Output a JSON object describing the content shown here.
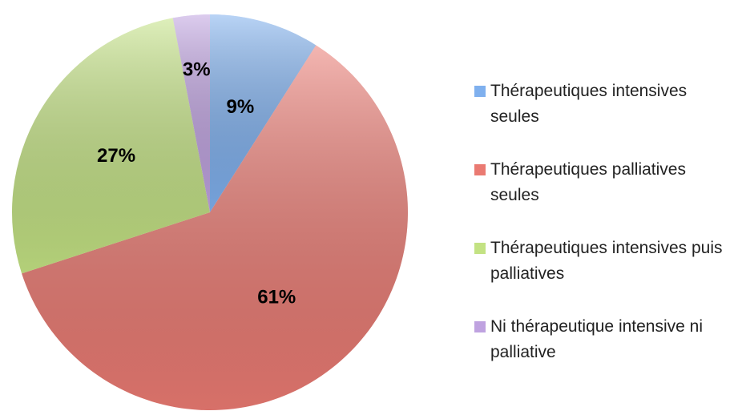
{
  "chart_data": {
    "type": "pie",
    "categories": [
      "Thérapeutiques intensives seules",
      "Thérapeutiques palliatives seules",
      "Thérapeutiques intensives puis palliatives",
      "Ni thérapeutique intensive ni palliative"
    ],
    "values": [
      9,
      61,
      27,
      3
    ],
    "value_labels": [
      "9%",
      "61%",
      "27%",
      "3%"
    ],
    "colors": [
      "#7fb0ee",
      "#ea7a72",
      "#c3e283",
      "#bfa2e0"
    ],
    "legend": "right"
  }
}
